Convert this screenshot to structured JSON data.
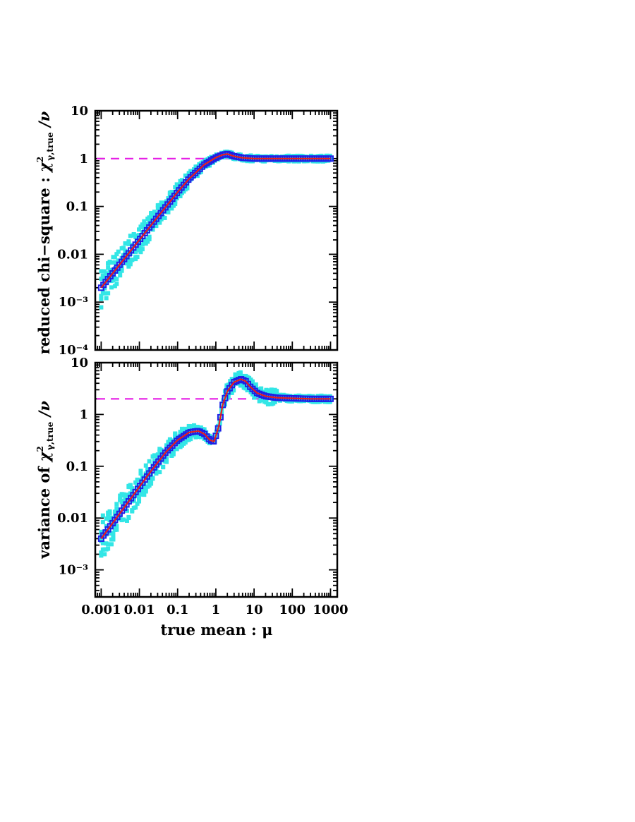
{
  "chart_data": [
    {
      "type": "scatter",
      "ylabel_main": "reduced chi−square : ",
      "ylabel_sym": "χ",
      "ylabel_sup": "2",
      "ylabel_sub": "γ,true",
      "ylabel_tail": " /ν",
      "xscale": "log",
      "yscale": "log",
      "xlim": [
        0.0007,
        1500
      ],
      "ylim": [
        0.0001,
        10
      ],
      "ytick_labels": [
        "10",
        "1",
        "0.1",
        "0.01",
        "10⁻³",
        "10⁻⁴"
      ],
      "yticks": [
        10,
        1,
        0.1,
        0.01,
        0.001,
        0.0001
      ],
      "reference_line": {
        "y": 1,
        "style": "dashed",
        "color": "#e61ee6"
      },
      "series": [
        {
          "points": [
            [
              0.001,
              0.002
            ],
            [
              0.002,
              0.004
            ],
            [
              0.005,
              0.01
            ],
            [
              0.01,
              0.02
            ],
            [
              0.02,
              0.04
            ],
            [
              0.05,
              0.1
            ],
            [
              0.1,
              0.2
            ],
            [
              0.2,
              0.38
            ],
            [
              0.5,
              0.75
            ],
            [
              1,
              1.05
            ],
            [
              1.5,
              1.2
            ],
            [
              2,
              1.25
            ],
            [
              3,
              1.12
            ],
            [
              5,
              1.04
            ],
            [
              10,
              1.0
            ],
            [
              30,
              1.0
            ],
            [
              100,
              1.0
            ],
            [
              300,
              1.0
            ],
            [
              1000,
              1.0
            ]
          ]
        }
      ]
    },
    {
      "type": "scatter",
      "ylabel_main": "variance of ",
      "ylabel_sym": "χ",
      "ylabel_sup": "2",
      "ylabel_sub": "γ,true",
      "ylabel_tail": " /ν",
      "xlabel": "true mean : μ",
      "xscale": "log",
      "yscale": "log",
      "xlim": [
        0.0007,
        1500
      ],
      "ylim": [
        0.0003,
        10
      ],
      "xtick_labels": [
        "0.001",
        "0.01",
        "0.1",
        "1",
        "10",
        "100",
        "1000"
      ],
      "xticks": [
        0.001,
        0.01,
        0.1,
        1,
        10,
        100,
        1000
      ],
      "ytick_labels": [
        "10",
        "1",
        "0.1",
        "0.01",
        "10⁻³"
      ],
      "yticks": [
        10,
        1,
        0.1,
        0.01,
        0.001
      ],
      "reference_line": {
        "y": 2,
        "style": "dashed",
        "color": "#e61ee6"
      },
      "series": [
        {
          "points": [
            [
              0.001,
              0.004
            ],
            [
              0.002,
              0.008
            ],
            [
              0.005,
              0.02
            ],
            [
              0.01,
              0.04
            ],
            [
              0.02,
              0.08
            ],
            [
              0.05,
              0.19
            ],
            [
              0.1,
              0.32
            ],
            [
              0.2,
              0.45
            ],
            [
              0.35,
              0.48
            ],
            [
              0.5,
              0.42
            ],
            [
              0.7,
              0.32
            ],
            [
              0.9,
              0.3
            ],
            [
              1.2,
              0.6
            ],
            [
              1.5,
              1.5
            ],
            [
              2,
              2.8
            ],
            [
              3,
              4.2
            ],
            [
              4.5,
              4.8
            ],
            [
              6,
              4.4
            ],
            [
              8,
              3.4
            ],
            [
              12,
              2.6
            ],
            [
              20,
              2.25
            ],
            [
              40,
              2.1
            ],
            [
              100,
              2.05
            ],
            [
              300,
              2.0
            ],
            [
              1000,
              2.0
            ]
          ]
        }
      ]
    }
  ]
}
